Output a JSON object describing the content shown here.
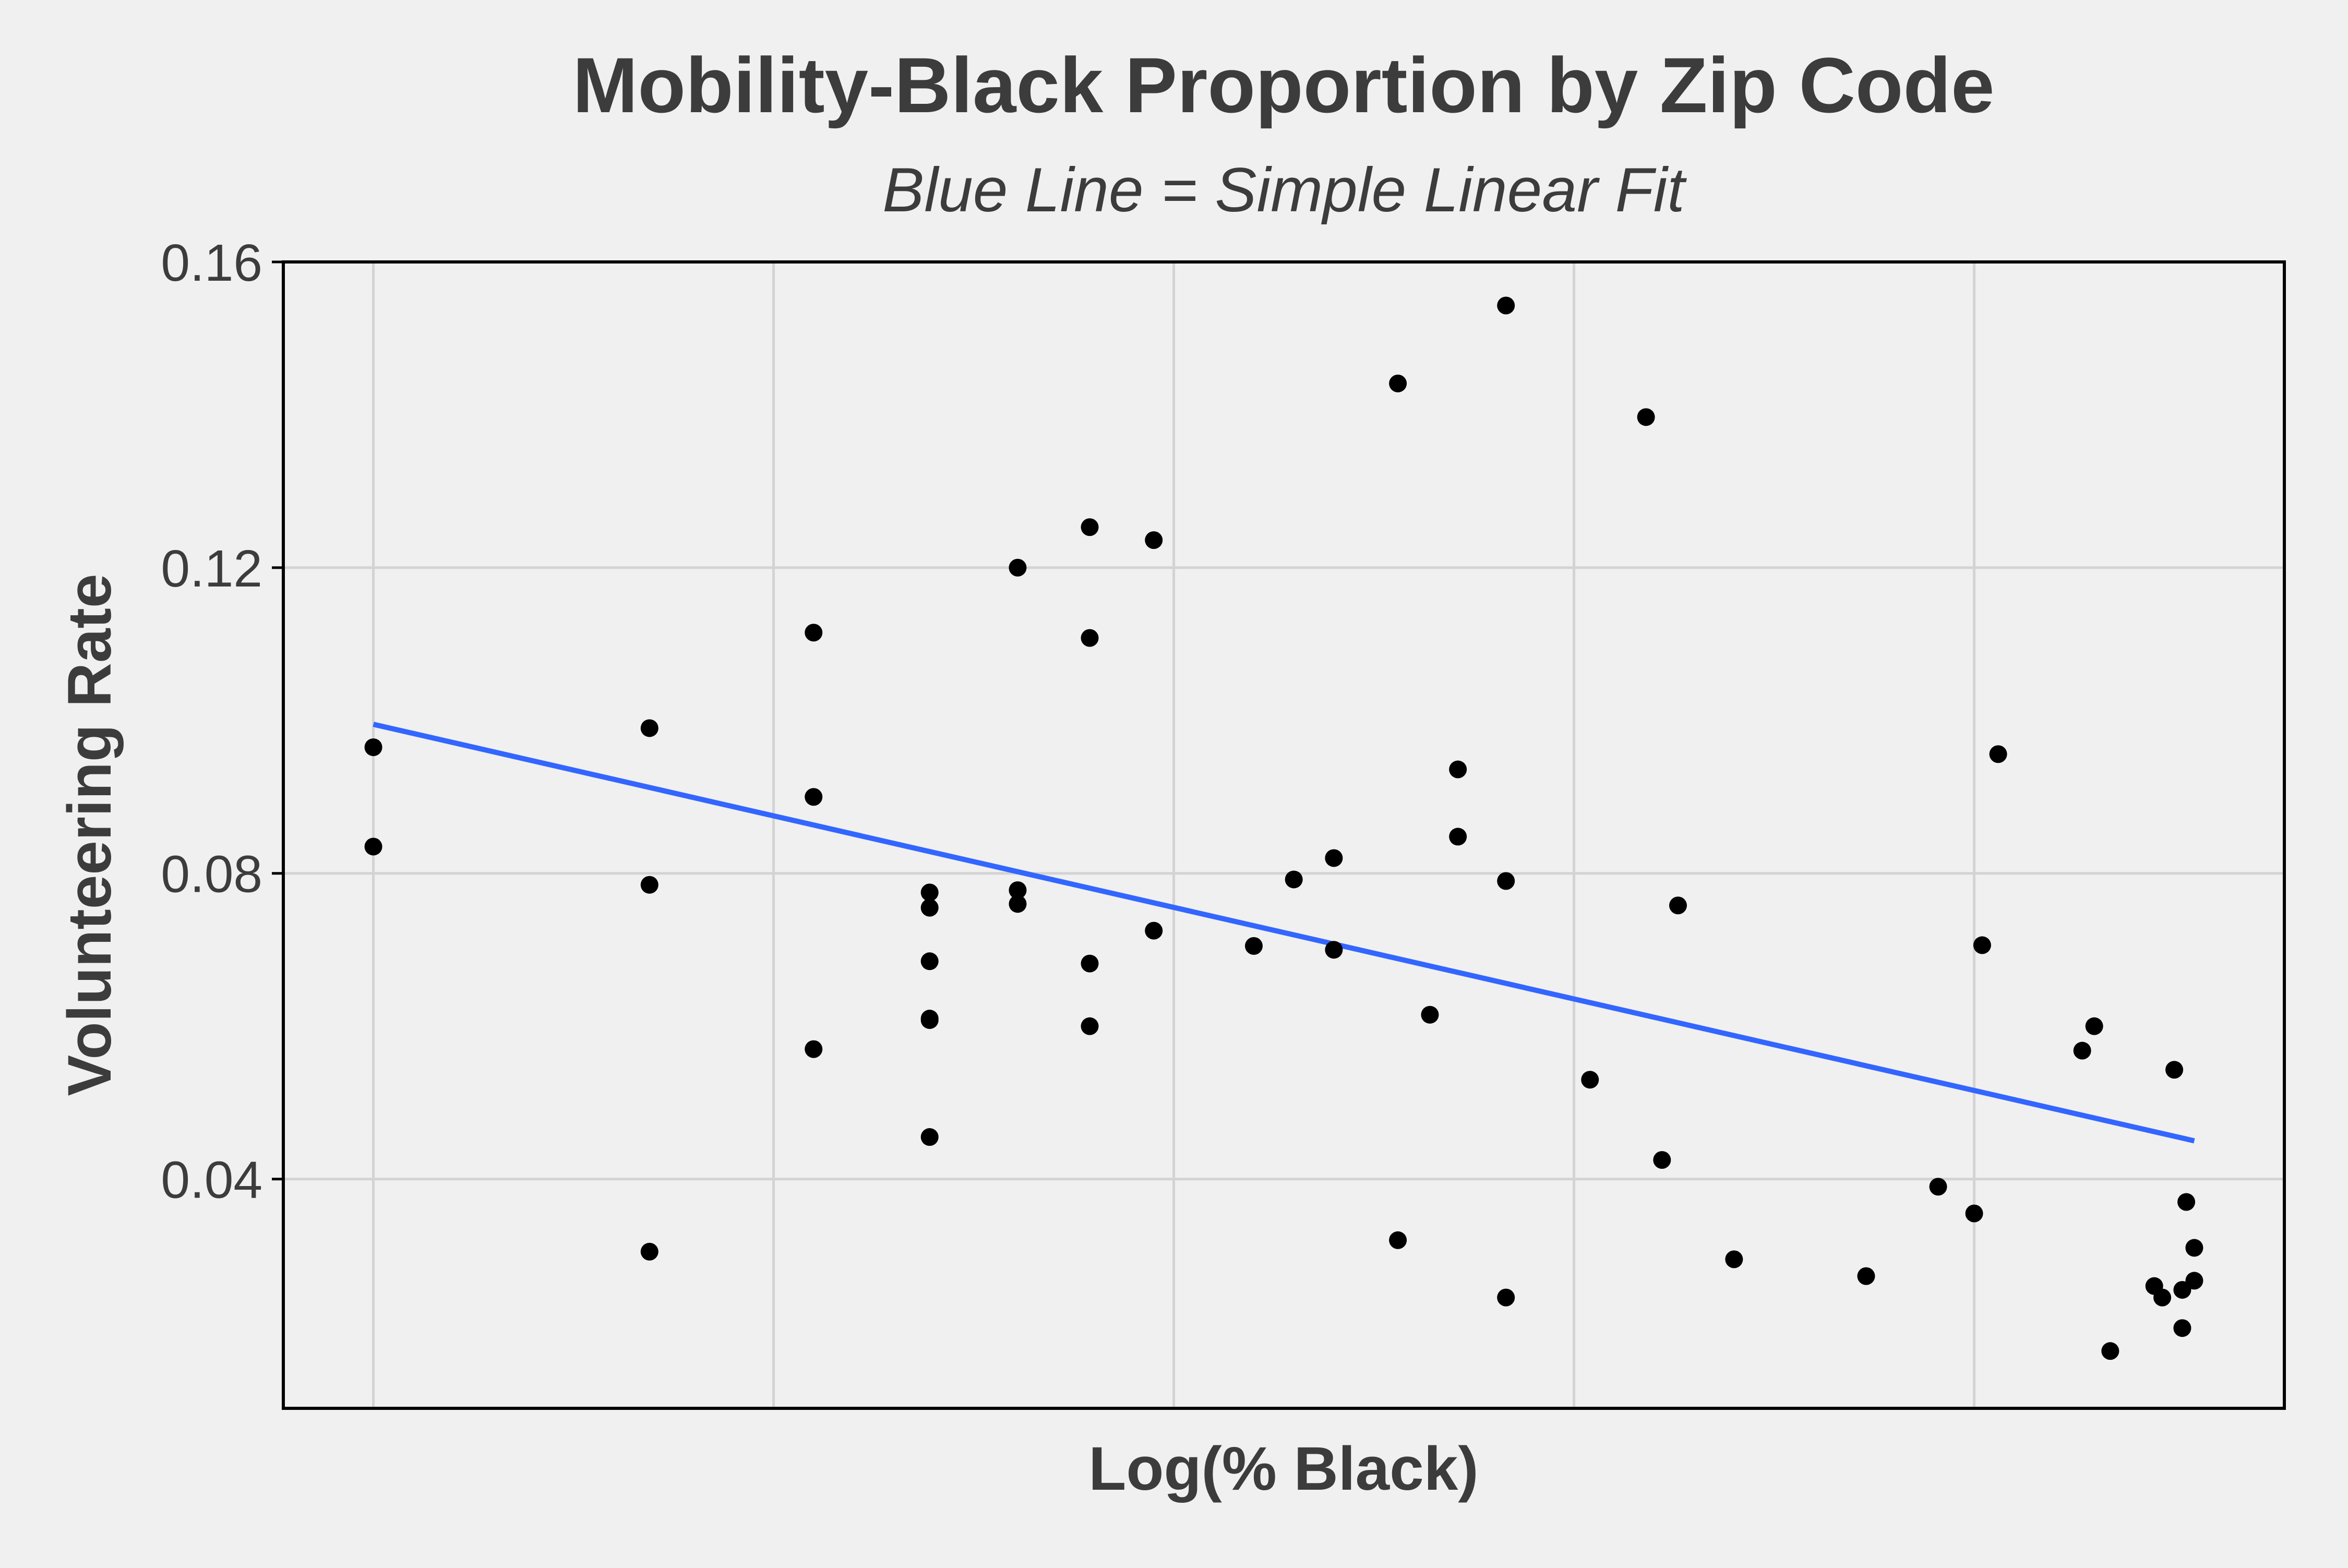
{
  "chart_data": {
    "type": "scatter",
    "title": "Mobility-Black Proportion by Zip Code",
    "subtitle": "Blue Line = Simple Linear Fit",
    "xlabel": "Log(% Black)",
    "ylabel": "Volunteering Rate",
    "xlim": [
      -0.225,
      4.775
    ],
    "ylim": [
      0.01,
      0.16
    ],
    "x_gridlines": [
      0,
      1,
      2,
      3,
      4
    ],
    "y_ticks": [
      0.04,
      0.08,
      0.12,
      0.16
    ],
    "y_tick_labels": [
      "0.04",
      "0.08",
      "0.12",
      "0.16"
    ],
    "grid": true,
    "point_color": "#000000",
    "fit_line_color": "#3366ff",
    "background_color": "#f0f0f0",
    "grid_color": "#d3d3d3",
    "points": [
      {
        "x": 0.0,
        "y": 0.0965
      },
      {
        "x": 0.0,
        "y": 0.0835
      },
      {
        "x": 0.69,
        "y": 0.099
      },
      {
        "x": 0.69,
        "y": 0.0785
      },
      {
        "x": 0.69,
        "y": 0.0305
      },
      {
        "x": 1.1,
        "y": 0.1115
      },
      {
        "x": 1.1,
        "y": 0.09
      },
      {
        "x": 1.1,
        "y": 0.057
      },
      {
        "x": 1.39,
        "y": 0.0775
      },
      {
        "x": 1.39,
        "y": 0.0755
      },
      {
        "x": 1.39,
        "y": 0.0685
      },
      {
        "x": 1.39,
        "y": 0.061
      },
      {
        "x": 1.39,
        "y": 0.0608
      },
      {
        "x": 1.39,
        "y": 0.0455
      },
      {
        "x": 1.61,
        "y": 0.12
      },
      {
        "x": 1.61,
        "y": 0.0778
      },
      {
        "x": 1.61,
        "y": 0.076
      },
      {
        "x": 1.79,
        "y": 0.1253
      },
      {
        "x": 1.79,
        "y": 0.1108
      },
      {
        "x": 1.79,
        "y": 0.0682
      },
      {
        "x": 1.79,
        "y": 0.06
      },
      {
        "x": 1.95,
        "y": 0.1236
      },
      {
        "x": 1.95,
        "y": 0.0725
      },
      {
        "x": 2.2,
        "y": 0.0705
      },
      {
        "x": 2.3,
        "y": 0.0792
      },
      {
        "x": 2.4,
        "y": 0.082
      },
      {
        "x": 2.4,
        "y": 0.07
      },
      {
        "x": 2.56,
        "y": 0.1441
      },
      {
        "x": 2.56,
        "y": 0.032
      },
      {
        "x": 2.64,
        "y": 0.0615
      },
      {
        "x": 2.71,
        "y": 0.0936
      },
      {
        "x": 2.71,
        "y": 0.0848
      },
      {
        "x": 2.83,
        "y": 0.1543
      },
      {
        "x": 2.83,
        "y": 0.079
      },
      {
        "x": 2.83,
        "y": 0.0245
      },
      {
        "x": 3.04,
        "y": 0.053
      },
      {
        "x": 3.18,
        "y": 0.1397
      },
      {
        "x": 3.22,
        "y": 0.0425
      },
      {
        "x": 3.26,
        "y": 0.0758
      },
      {
        "x": 3.4,
        "y": 0.0295
      },
      {
        "x": 3.73,
        "y": 0.0273
      },
      {
        "x": 3.91,
        "y": 0.039
      },
      {
        "x": 4.0,
        "y": 0.0355
      },
      {
        "x": 4.02,
        "y": 0.0706
      },
      {
        "x": 4.06,
        "y": 0.0956
      },
      {
        "x": 4.27,
        "y": 0.0568
      },
      {
        "x": 4.3,
        "y": 0.06
      },
      {
        "x": 4.34,
        "y": 0.0175
      },
      {
        "x": 4.45,
        "y": 0.026
      },
      {
        "x": 4.47,
        "y": 0.0245
      },
      {
        "x": 4.5,
        "y": 0.0543
      },
      {
        "x": 4.52,
        "y": 0.0255
      },
      {
        "x": 4.52,
        "y": 0.0205
      },
      {
        "x": 4.53,
        "y": 0.037
      },
      {
        "x": 4.55,
        "y": 0.031
      },
      {
        "x": 4.55,
        "y": 0.0267
      }
    ],
    "fit_line": {
      "x": [
        0,
        4.55
      ],
      "y": [
        0.0995,
        0.045
      ]
    }
  }
}
